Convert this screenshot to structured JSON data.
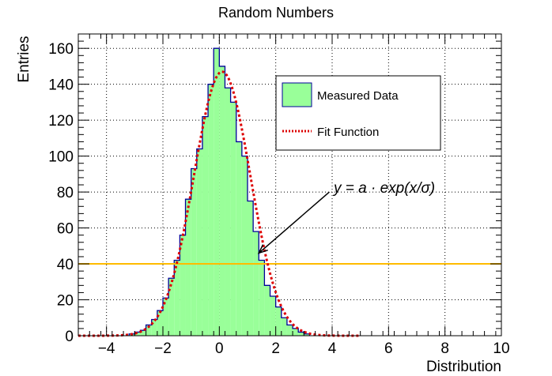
{
  "chart_data": {
    "type": "histogram",
    "title": "Random Numbers",
    "xlabel": "Distribution",
    "ylabel": "Entries",
    "xlim": [
      -5,
      10
    ],
    "ylim": [
      0,
      168
    ],
    "x_ticks": [
      -4,
      -2,
      0,
      2,
      4,
      6,
      8,
      10
    ],
    "y_ticks": [
      0,
      20,
      40,
      60,
      80,
      100,
      120,
      140,
      160
    ],
    "grid": true,
    "histogram": {
      "name": "Measured Data",
      "fill_color": "#99ff99",
      "line_color": "#000099",
      "bins": [
        {
          "x": -3.1,
          "y": 1
        },
        {
          "x": -2.9,
          "y": 2
        },
        {
          "x": -2.7,
          "y": 3
        },
        {
          "x": -2.5,
          "y": 6
        },
        {
          "x": -2.3,
          "y": 9
        },
        {
          "x": -2.1,
          "y": 14
        },
        {
          "x": -1.9,
          "y": 21
        },
        {
          "x": -1.7,
          "y": 32
        },
        {
          "x": -1.5,
          "y": 42
        },
        {
          "x": -1.3,
          "y": 56
        },
        {
          "x": -1.1,
          "y": 76
        },
        {
          "x": -0.9,
          "y": 93
        },
        {
          "x": -0.7,
          "y": 104
        },
        {
          "x": -0.5,
          "y": 122
        },
        {
          "x": -0.3,
          "y": 140
        },
        {
          "x": -0.1,
          "y": 160
        },
        {
          "x": 0.1,
          "y": 150
        },
        {
          "x": 0.3,
          "y": 138
        },
        {
          "x": 0.5,
          "y": 130
        },
        {
          "x": 0.7,
          "y": 108
        },
        {
          "x": 0.9,
          "y": 100
        },
        {
          "x": 1.1,
          "y": 75
        },
        {
          "x": 1.3,
          "y": 58
        },
        {
          "x": 1.5,
          "y": 42
        },
        {
          "x": 1.7,
          "y": 28
        },
        {
          "x": 1.9,
          "y": 22
        },
        {
          "x": 2.1,
          "y": 16
        },
        {
          "x": 2.3,
          "y": 10
        },
        {
          "x": 2.5,
          "y": 6
        },
        {
          "x": 2.7,
          "y": 4
        },
        {
          "x": 2.9,
          "y": 2
        },
        {
          "x": 3.1,
          "y": 1
        }
      ]
    },
    "fit": {
      "name": "Fit Function",
      "color": "#dd0000",
      "function": "gaussian",
      "amplitude": 147,
      "mean": 0.1,
      "sigma": 1.0
    },
    "reference_line": {
      "y": 40,
      "color": "#ffbb00"
    },
    "annotation": {
      "text": "y = a · exp(x/σ)",
      "arrow_from": {
        "x": 3.9,
        "y": 80
      },
      "arrow_to": {
        "x": 1.4,
        "y": 46
      }
    },
    "legend": {
      "position": "top-right",
      "entries": [
        "Measured Data",
        "Fit Function"
      ]
    }
  }
}
